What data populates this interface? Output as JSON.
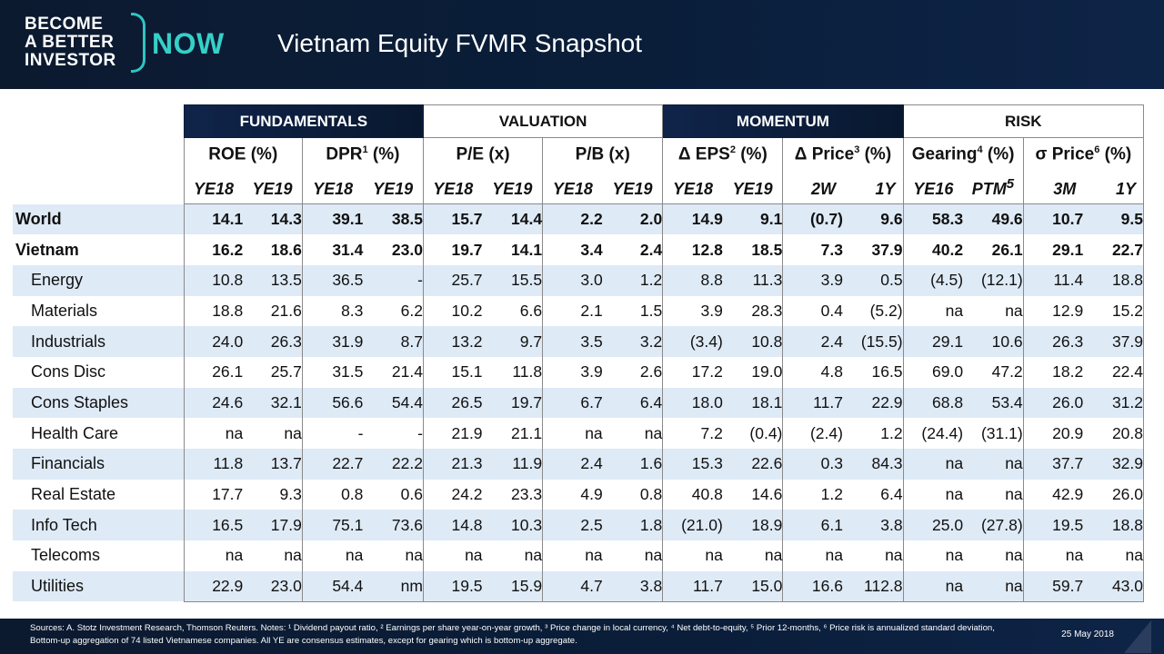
{
  "header": {
    "logo_lines": [
      "BECOME",
      "A BETTER",
      "INVESTOR"
    ],
    "logo_now": "NOW",
    "title": "Vietnam Equity FVMR Snapshot"
  },
  "groups": [
    "FUNDAMENTALS",
    "VALUATION",
    "MOMENTUM",
    "RISK"
  ],
  "metrics": [
    {
      "label": "ROE (%)",
      "base": "ROE",
      "sup": "",
      "unit": " (%)"
    },
    {
      "label": "DPR1 (%)",
      "base": "DPR",
      "sup": "1",
      "unit": " (%)"
    },
    {
      "label": "P/E (x)",
      "base": "P/E",
      "sup": "",
      "unit": " (x)"
    },
    {
      "label": "P/B (x)",
      "base": "P/B",
      "sup": "",
      "unit": " (x)"
    },
    {
      "label": "Δ EPS2 (%)",
      "base": "Δ EPS",
      "sup": "2",
      "unit": " (%)"
    },
    {
      "label": "Δ Price3 (%)",
      "base": "Δ Price",
      "sup": "3",
      "unit": " (%)"
    },
    {
      "label": "Gearing4 (%)",
      "base": "Gearing",
      "sup": "4",
      "unit": " (%)"
    },
    {
      "label": "σ Price6 (%)",
      "base": "σ Price",
      "sup": "6",
      "unit": " (%)"
    }
  ],
  "periods": [
    {
      "label": "YE18",
      "sup": ""
    },
    {
      "label": "YE19",
      "sup": ""
    },
    {
      "label": "YE18",
      "sup": ""
    },
    {
      "label": "YE19",
      "sup": ""
    },
    {
      "label": "YE18",
      "sup": ""
    },
    {
      "label": "YE19",
      "sup": ""
    },
    {
      "label": "YE18",
      "sup": ""
    },
    {
      "label": "YE19",
      "sup": ""
    },
    {
      "label": "YE18",
      "sup": ""
    },
    {
      "label": "YE19",
      "sup": ""
    },
    {
      "label": "2W",
      "sup": ""
    },
    {
      "label": "1Y",
      "sup": ""
    },
    {
      "label": "YE16",
      "sup": ""
    },
    {
      "label": "PTM",
      "sup": "5"
    },
    {
      "label": "3M",
      "sup": ""
    },
    {
      "label": "1Y",
      "sup": ""
    }
  ],
  "rows": [
    {
      "name": "World",
      "bold": true,
      "shade": true,
      "values": [
        "14.1",
        "14.3",
        "39.1",
        "38.5",
        "15.7",
        "14.4",
        "2.2",
        "2.0",
        "14.9",
        "9.1",
        "(0.7)",
        "9.6",
        "58.3",
        "49.6",
        "10.7",
        "9.5"
      ]
    },
    {
      "name": "Vietnam",
      "bold": true,
      "shade": false,
      "values": [
        "16.2",
        "18.6",
        "31.4",
        "23.0",
        "19.7",
        "14.1",
        "3.4",
        "2.4",
        "12.8",
        "18.5",
        "7.3",
        "37.9",
        "40.2",
        "26.1",
        "29.1",
        "22.7"
      ]
    },
    {
      "name": "Energy",
      "bold": false,
      "shade": true,
      "values": [
        "10.8",
        "13.5",
        "36.5",
        "-",
        "25.7",
        "15.5",
        "3.0",
        "1.2",
        "8.8",
        "11.3",
        "3.9",
        "0.5",
        "(4.5)",
        "(12.1)",
        "11.4",
        "18.8"
      ]
    },
    {
      "name": "Materials",
      "bold": false,
      "shade": false,
      "values": [
        "18.8",
        "21.6",
        "8.3",
        "6.2",
        "10.2",
        "6.6",
        "2.1",
        "1.5",
        "3.9",
        "28.3",
        "0.4",
        "(5.2)",
        "na",
        "na",
        "12.9",
        "15.2"
      ]
    },
    {
      "name": "Industrials",
      "bold": false,
      "shade": true,
      "values": [
        "24.0",
        "26.3",
        "31.9",
        "8.7",
        "13.2",
        "9.7",
        "3.5",
        "3.2",
        "(3.4)",
        "10.8",
        "2.4",
        "(15.5)",
        "29.1",
        "10.6",
        "26.3",
        "37.9"
      ]
    },
    {
      "name": "Cons Disc",
      "bold": false,
      "shade": false,
      "values": [
        "26.1",
        "25.7",
        "31.5",
        "21.4",
        "15.1",
        "11.8",
        "3.9",
        "2.6",
        "17.2",
        "19.0",
        "4.8",
        "16.5",
        "69.0",
        "47.2",
        "18.2",
        "22.4"
      ]
    },
    {
      "name": "Cons Staples",
      "bold": false,
      "shade": true,
      "values": [
        "24.6",
        "32.1",
        "56.6",
        "54.4",
        "26.5",
        "19.7",
        "6.7",
        "6.4",
        "18.0",
        "18.1",
        "11.7",
        "22.9",
        "68.8",
        "53.4",
        "26.0",
        "31.2"
      ]
    },
    {
      "name": "Health Care",
      "bold": false,
      "shade": false,
      "values": [
        "na",
        "na",
        "-",
        "-",
        "21.9",
        "21.1",
        "na",
        "na",
        "7.2",
        "(0.4)",
        "(2.4)",
        "1.2",
        "(24.4)",
        "(31.1)",
        "20.9",
        "20.8"
      ]
    },
    {
      "name": "Financials",
      "bold": false,
      "shade": true,
      "values": [
        "11.8",
        "13.7",
        "22.7",
        "22.2",
        "21.3",
        "11.9",
        "2.4",
        "1.6",
        "15.3",
        "22.6",
        "0.3",
        "84.3",
        "na",
        "na",
        "37.7",
        "32.9"
      ]
    },
    {
      "name": "Real Estate",
      "bold": false,
      "shade": false,
      "values": [
        "17.7",
        "9.3",
        "0.8",
        "0.6",
        "24.2",
        "23.3",
        "4.9",
        "0.8",
        "40.8",
        "14.6",
        "1.2",
        "6.4",
        "na",
        "na",
        "42.9",
        "26.0"
      ]
    },
    {
      "name": "Info Tech",
      "bold": false,
      "shade": true,
      "values": [
        "16.5",
        "17.9",
        "75.1",
        "73.6",
        "14.8",
        "10.3",
        "2.5",
        "1.8",
        "(21.0)",
        "18.9",
        "6.1",
        "3.8",
        "25.0",
        "(27.8)",
        "19.5",
        "18.8"
      ]
    },
    {
      "name": "Telecoms",
      "bold": false,
      "shade": false,
      "values": [
        "na",
        "na",
        "na",
        "na",
        "na",
        "na",
        "na",
        "na",
        "na",
        "na",
        "na",
        "na",
        "na",
        "na",
        "na",
        "na"
      ]
    },
    {
      "name": "Utilities",
      "bold": false,
      "shade": true,
      "values": [
        "22.9",
        "23.0",
        "54.4",
        "nm",
        "19.5",
        "15.9",
        "4.7",
        "3.8",
        "11.7",
        "15.0",
        "16.6",
        "112.8",
        "na",
        "na",
        "59.7",
        "43.0"
      ]
    }
  ],
  "footer": {
    "sources": "Sources: A. Stotz Investment Research, Thomson Reuters. Notes: ¹ Dividend payout ratio, ² Earnings per share year-on-year growth, ³ Price change in local currency, ⁴ Net debt-to-equity, ⁵ Prior 12-months, ⁶ Price risk is annualized standard deviation, Bottom-up aggregation of 74 listed Vietnamese companies. All YE are consensus estimates, except for gearing which is bottom-up aggregate.",
    "date": "25 May 2018"
  },
  "colors": {
    "header_bg": "#0a1e3a",
    "accent_teal": "#35d0c8",
    "row_shade": "#deeaf6"
  }
}
